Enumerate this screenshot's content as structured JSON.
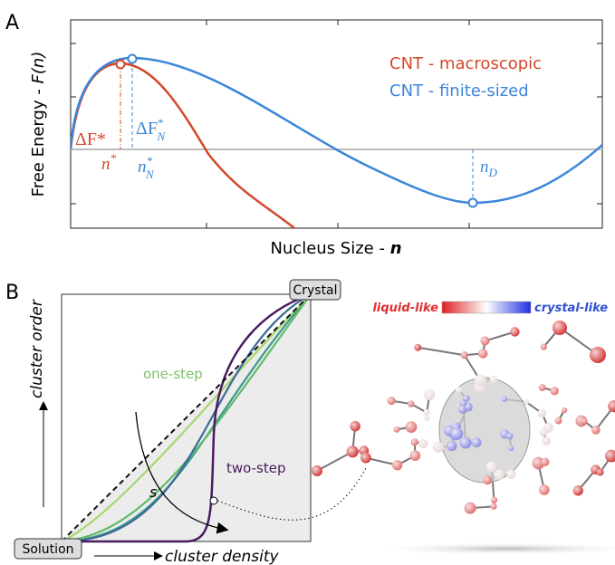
{
  "panel_a": {
    "label": "A",
    "y_axis_label": {
      "text": "Free Energy - ",
      "var": "F(n)"
    },
    "x_axis_label": {
      "text": "Nucleus Size - ",
      "var": "n"
    },
    "legend": [
      "CNT - macroscopic",
      "CNT - finite-sized"
    ],
    "barrier_macro": "ΔF*",
    "barrier_finite": {
      "base": "ΔF",
      "sup": "*",
      "sub": "N"
    },
    "critical_macro": {
      "base": "n",
      "sup": "*"
    },
    "critical_finite": {
      "base": "n",
      "sup": "*",
      "sub": "N"
    },
    "dense_size": {
      "base": "n",
      "sub": "D"
    }
  },
  "panel_b": {
    "label": "B",
    "crystal": "Crystal",
    "solution": "Solution",
    "y_axis_label": "cluster order",
    "x_axis_label": "cluster density",
    "one_step": "one-step",
    "two_step": "two-step",
    "path_variable": "s",
    "colorbar_low": "liquid-like",
    "colorbar_high": "crystal-like"
  }
}
